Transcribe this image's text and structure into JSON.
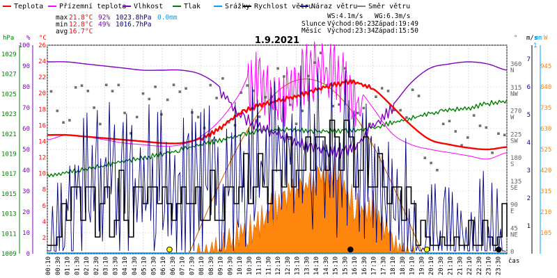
{
  "chart_data": {
    "type": "line",
    "title": "1.9.2021",
    "legend": [
      {
        "name": "Teplota",
        "color": "#ff0000"
      },
      {
        "name": "Přízemní teplota",
        "color": "#ff00ff"
      },
      {
        "name": "Vlhkost",
        "color": "#8000c0"
      },
      {
        "name": "Tlak",
        "color": "#008000"
      },
      {
        "name": "Srážky",
        "color": "#00a0ff"
      },
      {
        "name": "Rychlost větru",
        "color": "#000000"
      },
      {
        "name": "Náraz větru",
        "color": "#000080"
      },
      {
        "name": "Směr větru",
        "color": "#808080"
      }
    ],
    "stats": {
      "max": {
        "label": "max",
        "temp": "21.8°C",
        "hum": "92%",
        "press": "1023.8hPa",
        "rain": "0.0mm"
      },
      "min": {
        "label": "min",
        "temp": "12.8°C",
        "hum": "49%",
        "press": "1016.7hPa"
      },
      "avg": {
        "label": "avg",
        "temp": "16.7°C"
      },
      "wind": {
        "ws": "WS:4.1m/s",
        "wg": "WG:6.3m/s"
      },
      "sun": {
        "label": "Slunce",
        "rise": "Východ:06:23",
        "set": "Západ:19:49"
      },
      "moon": {
        "label": "Měsíc",
        "rise": "Východ:23:34",
        "set": "Západ:15:50"
      }
    },
    "axis_units": {
      "press": "hPa",
      "hum": "%",
      "temp": "°C",
      "dir": "°",
      "wind": "m/s",
      "rain": "mm",
      "solar": "W",
      "time": "čas"
    },
    "axes": {
      "pressure": {
        "ticks": [
          "1029",
          "1027",
          "1025",
          "1023",
          "1021",
          "1019",
          "1017",
          "1015",
          "1013",
          "1011",
          "1009"
        ]
      },
      "humidity": {
        "ticks": [
          "100",
          "90",
          "80",
          "70",
          "60",
          "50",
          "40",
          "30",
          "20",
          "10",
          "0"
        ]
      },
      "temperature": {
        "ticks": [
          "26",
          "24",
          "22",
          "20",
          "18",
          "16",
          "14",
          "12",
          "10",
          "8",
          "6",
          "4",
          "2"
        ]
      },
      "direction": {
        "ticks": [
          {
            "deg": "360",
            "dir": "N"
          },
          {
            "deg": "315",
            "dir": "NW"
          },
          {
            "deg": "270",
            "dir": "W"
          },
          {
            "deg": "225",
            "dir": "SW"
          },
          {
            "deg": "180",
            "dir": "S"
          },
          {
            "deg": "135",
            "dir": "SE"
          },
          {
            "deg": "90",
            "dir": "E"
          },
          {
            "deg": "45",
            "dir": "NE"
          },
          {
            "deg": "0",
            "dir": ""
          }
        ]
      },
      "wind": {
        "ticks": [
          "7",
          "6",
          "5",
          "4",
          "3",
          "2",
          "1"
        ]
      },
      "rain_top": "1",
      "solar": {
        "ticks": [
          "945",
          "840",
          "735",
          "630",
          "525",
          "420",
          "315",
          "210",
          "105"
        ]
      },
      "time": [
        "00:10",
        "00:30",
        "01:10",
        "01:30",
        "02:10",
        "02:30",
        "03:10",
        "03:30",
        "04:10",
        "04:30",
        "05:10",
        "05:30",
        "06:10",
        "06:30",
        "07:10",
        "07:30",
        "08:10",
        "08:30",
        "09:10",
        "09:30",
        "10:10",
        "10:30",
        "11:10",
        "11:30",
        "12:10",
        "12:30",
        "13:10",
        "13:30",
        "14:10",
        "14:30",
        "15:10",
        "15:30",
        "16:10",
        "16:30",
        "17:10",
        "17:30",
        "18:10",
        "18:30",
        "19:10",
        "19:30",
        "20:10",
        "20:30",
        "21:10",
        "21:30",
        "22:10",
        "22:30",
        "23:10",
        "23:30"
      ]
    },
    "hours": [
      0,
      1,
      2,
      3,
      4,
      5,
      6,
      7,
      8,
      9,
      10,
      11,
      12,
      13,
      14,
      15,
      16,
      17,
      18,
      19,
      20,
      21,
      22,
      23,
      24
    ],
    "series": [
      {
        "name": "Teplota",
        "unit": "°C",
        "values": [
          14.8,
          14.8,
          14.6,
          14.4,
          14.2,
          14.0,
          13.8,
          13.8,
          14.4,
          15.8,
          17.6,
          18.6,
          19.2,
          19.8,
          20.6,
          21.2,
          21.6,
          20.6,
          18.4,
          16.0,
          14.2,
          13.6,
          13.2,
          13.0,
          13.3
        ]
      },
      {
        "name": "Přízemní teplota",
        "unit": "°C",
        "values": [
          14.2,
          14.8,
          14.6,
          14.2,
          13.8,
          13.6,
          13.4,
          13.6,
          14.6,
          16.6,
          19.8,
          24.0,
          20.5,
          23.6,
          25.0,
          24.2,
          21.4,
          18.2,
          15.0,
          13.6,
          13.0,
          12.6,
          12.2,
          11.8,
          12.6
        ]
      },
      {
        "name": "Vlhkost",
        "unit": "%",
        "values": [
          92,
          92,
          91,
          90,
          89,
          88,
          88,
          88,
          86,
          80,
          69,
          63,
          59,
          55,
          53,
          50,
          53,
          63,
          71,
          82,
          89,
          91,
          92,
          91,
          88
        ]
      },
      {
        "name": "Tlak",
        "unit": "hPa",
        "values": [
          1016.7,
          1016.9,
          1017.2,
          1017.6,
          1018.0,
          1018.3,
          1018.7,
          1019.1,
          1019.6,
          1020.0,
          1020.5,
          1020.9,
          1021.0,
          1021.0,
          1020.9,
          1020.9,
          1021.0,
          1021.2,
          1021.7,
          1022.1,
          1022.6,
          1022.9,
          1023.1,
          1023.5,
          1023.8
        ]
      },
      {
        "name": "Rychlost větru",
        "unit": "m/s",
        "values": [
          0.6,
          1.8,
          2.4,
          2.4,
          2.4,
          2.4,
          2.4,
          2.4,
          2.4,
          2.4,
          3.0,
          3.0,
          3.6,
          3.6,
          4.2,
          4.2,
          4.2,
          3.6,
          3.0,
          1.8,
          0.6,
          0.6,
          1.2,
          1.2,
          1.2
        ]
      },
      {
        "name": "Náraz větru",
        "unit": "m/s",
        "values": [
          1.0,
          3.5,
          3.8,
          4.2,
          3.6,
          4.6,
          3.8,
          4.2,
          4.0,
          3.8,
          4.6,
          4.4,
          5.0,
          5.2,
          5.6,
          5.2,
          5.4,
          4.4,
          3.8,
          2.2,
          1.0,
          1.2,
          1.4,
          1.8,
          1.5
        ]
      },
      {
        "name": "Solar",
        "unit": "W",
        "values": [
          0,
          0,
          0,
          0,
          0,
          0,
          0,
          0,
          20,
          60,
          120,
          180,
          280,
          350,
          420,
          450,
          280,
          260,
          100,
          20,
          0,
          0,
          0,
          0,
          0
        ]
      },
      {
        "name": "Směr větru",
        "unit": "°",
        "values": [
          300,
          305,
          295,
          310,
          300,
          290,
          320,
          315,
          305,
          310,
          300,
          320,
          330,
          310,
          350,
          340,
          320,
          280,
          330,
          300,
          230,
          220,
          240,
          250,
          260
        ]
      }
    ],
    "markers": {
      "sunrise_hour": 6.38,
      "sunset_hour": 19.82,
      "moonrise_hour": 23.57,
      "moonset_hour": 15.83
    }
  }
}
